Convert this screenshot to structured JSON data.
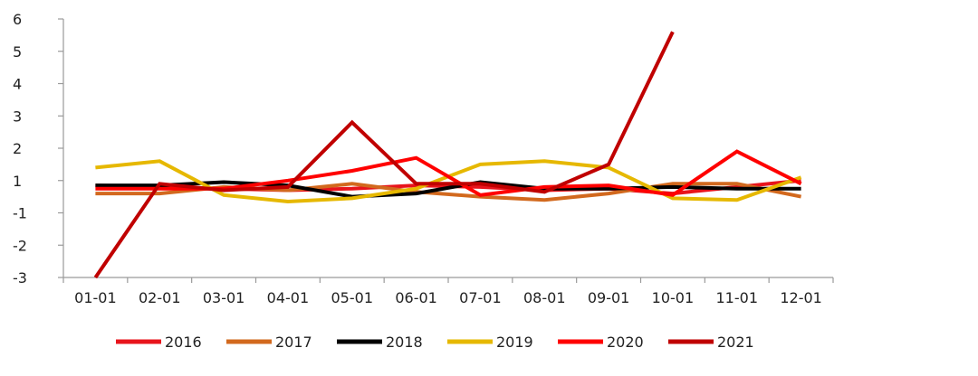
{
  "chart_data": {
    "type": "line",
    "title": "",
    "xlabel": "",
    "ylabel": "",
    "categories": [
      "01-01",
      "02-01",
      "03-01",
      "04-01",
      "05-01",
      "06-01",
      "07-01",
      "08-01",
      "09-01",
      "10-01",
      "11-01",
      "12-01"
    ],
    "ylim": [
      -3,
      6
    ],
    "yticks": [
      6,
      5,
      4,
      3,
      2,
      1,
      -1,
      -2,
      -3
    ],
    "ytick_labels": [
      "6",
      "5",
      "4",
      "3",
      "2",
      "1",
      "-1",
      "-2",
      "-3"
    ],
    "grid": false,
    "legend_position": "bottom",
    "series": [
      {
        "name": "2016",
        "color": "#e8141c",
        "values": [
          0.7,
          0.6,
          0.5,
          0.4,
          0.5,
          0.7,
          0.6,
          0.4,
          0.5,
          0.2,
          0.6,
          1.0
        ]
      },
      {
        "name": "2017",
        "color": "#d2691e",
        "values": [
          0.2,
          0.2,
          0.6,
          0.4,
          0.8,
          0.3,
          0.0,
          -0.2,
          0.2,
          0.8,
          0.8,
          0.0
        ]
      },
      {
        "name": "2018",
        "color": "#000000",
        "values": [
          0.7,
          0.7,
          0.9,
          0.7,
          0.0,
          0.2,
          0.9,
          0.5,
          0.5,
          0.6,
          0.5,
          0.5
        ]
      },
      {
        "name": "2019",
        "color": "#e6b800",
        "values": [
          1.4,
          1.6,
          0.1,
          -0.3,
          -0.1,
          0.5,
          1.5,
          1.6,
          1.4,
          -0.1,
          -0.2,
          1.1
        ]
      },
      {
        "name": "2020",
        "color": "#ff0000",
        "values": [
          0.5,
          0.5,
          0.5,
          1.0,
          1.3,
          1.7,
          0.1,
          0.6,
          0.7,
          0.1,
          1.9,
          0.8
        ]
      },
      {
        "name": "2021",
        "color": "#c00000",
        "values": [
          -3.0,
          0.8,
          0.4,
          0.6,
          2.8,
          0.8,
          0.8,
          0.3,
          1.5,
          5.6,
          null,
          null
        ]
      }
    ]
  }
}
